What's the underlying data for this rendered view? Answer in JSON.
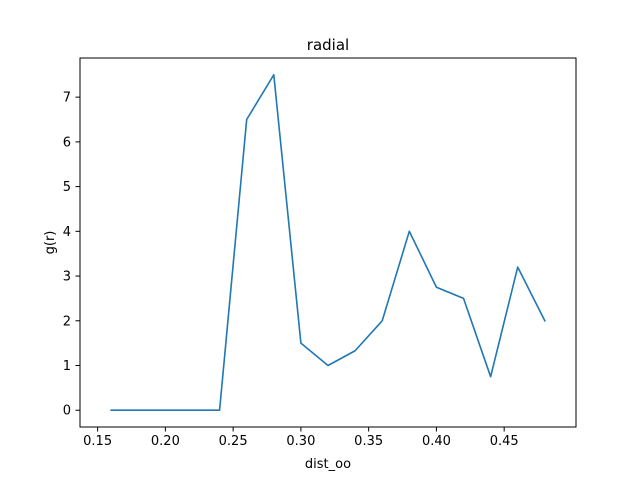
{
  "chart_data": {
    "type": "line",
    "title": "radial",
    "xlabel": "dist_oo",
    "ylabel": "g(r)",
    "xlim": [
      0.137,
      0.503
    ],
    "ylim": [
      -0.375,
      7.875
    ],
    "xticks": [
      0.15,
      0.2,
      0.25,
      0.3,
      0.35,
      0.4,
      0.45
    ],
    "xtick_labels": [
      "0.15",
      "0.20",
      "0.25",
      "0.30",
      "0.35",
      "0.40",
      "0.45"
    ],
    "yticks": [
      0,
      1,
      2,
      3,
      4,
      5,
      6,
      7
    ],
    "ytick_labels": [
      "0",
      "1",
      "2",
      "3",
      "4",
      "5",
      "6",
      "7"
    ],
    "grid": false,
    "series": [
      {
        "color": "#1f77b4",
        "x": [
          0.16,
          0.18,
          0.2,
          0.22,
          0.24,
          0.26,
          0.28,
          0.3,
          0.32,
          0.34,
          0.36,
          0.38,
          0.4,
          0.42,
          0.44,
          0.46,
          0.48
        ],
        "y": [
          0,
          0,
          0,
          0,
          0,
          6.5,
          7.5,
          1.5,
          1.0,
          1.33,
          2.0,
          4.0,
          2.75,
          2.5,
          0.75,
          3.2,
          2.0
        ]
      }
    ]
  }
}
